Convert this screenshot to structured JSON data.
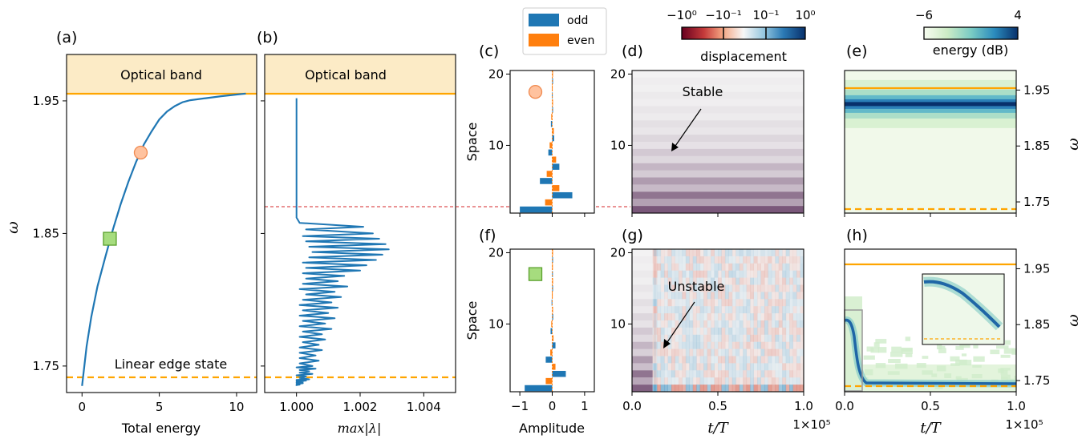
{
  "colors": {
    "blue": "#1f77b4",
    "orange": "#ff7f0e",
    "band_fill": "#fcebc6",
    "band_line": "#ffa500",
    "red_dash": "#d62728",
    "marker_circle_fill": "#ffc29e",
    "marker_circle_edge": "#f08a50",
    "marker_square_fill": "#a6dc7e",
    "marker_square_edge": "#5aa02c"
  },
  "panel_labels": {
    "a": "(a)",
    "b": "(b)",
    "c": "(c)",
    "d": "(d)",
    "e": "(e)",
    "f": "(f)",
    "g": "(g)",
    "h": "(h)"
  },
  "legend": {
    "odd": "odd",
    "even": "even"
  },
  "colorbar_displacement": {
    "label": "displacement",
    "ticks": [
      "−10⁰",
      "−10⁻¹",
      "10⁻¹",
      "10⁰"
    ]
  },
  "colorbar_energy": {
    "label": "energy (dB)",
    "ticks": [
      "−6",
      "4"
    ]
  },
  "chart_data": [
    {
      "panel": "a",
      "type": "line",
      "xlabel": "Total energy",
      "ylabel": "ω",
      "xlim": [
        -1,
        11.3
      ],
      "ylim": [
        1.73,
        1.985
      ],
      "xticks": [
        "0",
        "5",
        "10"
      ],
      "yticks": [
        "1.75",
        "1.85",
        "1.95"
      ],
      "band_text": "Optical band",
      "edge_text": "Linear edge state",
      "optical_band_edge": 1.95,
      "linear_edge_state": 1.735,
      "series": [
        {
          "x": [
            0,
            0.3,
            0.6,
            1.0,
            1.5,
            2.0,
            2.5,
            3.0,
            3.5,
            4.0,
            4.5,
            5.0,
            5.5,
            6.0,
            6.5,
            7.0,
            8.0,
            9.0,
            10.0,
            10.6
          ],
          "y": [
            1.735,
            1.765,
            1.787,
            1.81,
            1.832,
            1.853,
            1.872,
            1.889,
            1.904,
            1.917,
            1.927,
            1.936,
            1.942,
            1.946,
            1.949,
            1.9505,
            1.952,
            1.9535,
            1.9548,
            1.9555
          ]
        }
      ],
      "markers": [
        {
          "shape": "circle",
          "x": 3.8,
          "y": 1.911
        },
        {
          "shape": "square",
          "x": 1.8,
          "y": 1.846
        }
      ]
    },
    {
      "panel": "b",
      "type": "line",
      "xlabel": "max|λ|",
      "xlim": [
        0.999,
        1.005
      ],
      "ylim": [
        1.73,
        1.985
      ],
      "xticks": [
        "1.000",
        "1.002",
        "1.004"
      ],
      "band_text": "Optical band",
      "optical_band_edge": 1.95,
      "linear_edge_state": 1.735,
      "instability_threshold": 1.862,
      "series": [
        {
          "x": [
            1.0,
            1.0,
            1.0,
            1.0001,
            1.0021,
            1.0003,
            1.0024,
            1.0002,
            1.0026,
            1.0003,
            1.0028,
            1.0004,
            1.0029,
            1.0005,
            1.0027,
            1.0004,
            1.0025,
            1.0002,
            1.0022,
            1.0003,
            1.002,
            1.0002,
            1.0015,
            1.0003,
            1.0013,
            1.0002,
            1.0016,
            1.0001,
            1.0012,
            1.0003,
            1.0014,
            1.0002,
            1.0011,
            1.0001,
            1.0013,
            1.0002,
            1.001,
            1.0001,
            1.0012,
            1.0002,
            1.0009,
            1.0001,
            1.0011,
            1.0002,
            1.0008,
            1.0001,
            1.0009,
            1.0002,
            1.0007,
            1.0001,
            1.0008,
            1.0001,
            1.0006,
            1.0001,
            1.0007,
            1.0001,
            1.0005,
            1.0,
            1.0006,
            1.0001,
            1.0004,
            1.0001,
            1.0005,
            1.0,
            1.0003,
            1.0001,
            1.0004,
            1.0,
            1.0003,
            1.0,
            1.0002,
            1.0,
            1.0002,
            1.0,
            1.0001,
            1.0,
            1.0,
            1.0
          ],
          "y": [
            1.952,
            1.9,
            1.862,
            1.858,
            1.855,
            1.853,
            1.85,
            1.848,
            1.846,
            1.844,
            1.842,
            1.84,
            1.838,
            1.836,
            1.834,
            1.832,
            1.83,
            1.828,
            1.826,
            1.824,
            1.822,
            1.82,
            1.818,
            1.816,
            1.814,
            1.812,
            1.81,
            1.808,
            1.806,
            1.804,
            1.802,
            1.8,
            1.798,
            1.796,
            1.794,
            1.792,
            1.79,
            1.788,
            1.786,
            1.784,
            1.782,
            1.78,
            1.778,
            1.776,
            1.774,
            1.772,
            1.77,
            1.768,
            1.766,
            1.764,
            1.762,
            1.76,
            1.758,
            1.756,
            1.754,
            1.752,
            1.75,
            1.749,
            1.748,
            1.747,
            1.746,
            1.745,
            1.744,
            1.743,
            1.742,
            1.741,
            1.74,
            1.7395,
            1.739,
            1.7385,
            1.738,
            1.7375,
            1.737,
            1.7365,
            1.736,
            1.7357,
            1.7355,
            1.735
          ]
        }
      ]
    },
    {
      "panel": "c",
      "type": "bar",
      "ylabel": "Space",
      "xlim": [
        -1.3,
        1.3
      ],
      "ylim": [
        0.5,
        20.5
      ],
      "xticks": [
        "−1",
        "0",
        "1"
      ],
      "yticks": [
        "10",
        "20"
      ],
      "marker": {
        "shape": "circle",
        "x": -0.52,
        "y": 17.5
      },
      "sites": [
        1,
        2,
        3,
        4,
        5,
        6,
        7,
        8,
        9,
        10,
        11,
        12,
        13,
        14,
        15,
        16,
        17,
        18,
        19,
        20
      ],
      "series": [
        {
          "name": "odd",
          "values": [
            -1.0,
            0,
            0.62,
            0,
            -0.38,
            0,
            0.22,
            0,
            -0.12,
            0,
            0.06,
            0,
            -0.04,
            0,
            0.02,
            0,
            -0.01,
            0,
            0.005,
            0
          ]
        },
        {
          "name": "even",
          "values": [
            0,
            -0.22,
            0,
            0.22,
            0,
            -0.17,
            0,
            0.12,
            0,
            -0.08,
            0,
            0.05,
            0,
            -0.03,
            0,
            0.02,
            0,
            -0.01,
            0,
            0.005
          ]
        }
      ]
    },
    {
      "panel": "f",
      "type": "bar",
      "xlabel": "Amplitude",
      "ylabel": "Space",
      "xlim": [
        -1.3,
        1.3
      ],
      "ylim": [
        0.5,
        20.5
      ],
      "xticks": [
        "−1",
        "0",
        "1"
      ],
      "yticks": [
        "10",
        "20"
      ],
      "marker": {
        "shape": "square",
        "x": -0.52,
        "y": 17
      },
      "sites": [
        1,
        2,
        3,
        4,
        5,
        6,
        7,
        8,
        9,
        10,
        11,
        12,
        13,
        14,
        15,
        16,
        17,
        18,
        19,
        20
      ],
      "series": [
        {
          "name": "odd",
          "values": [
            -0.85,
            0,
            0.42,
            0,
            -0.2,
            0,
            0.1,
            0,
            -0.05,
            0,
            0.03,
            0,
            -0.02,
            0,
            0.01,
            0,
            -0.005,
            0,
            0.003,
            0
          ]
        },
        {
          "name": "even",
          "values": [
            0,
            -0.2,
            0,
            0.1,
            0,
            -0.06,
            0,
            0.04,
            0,
            -0.03,
            0,
            0.02,
            0,
            -0.01,
            0,
            0.008,
            0,
            -0.005,
            0,
            0.003
          ]
        }
      ]
    },
    {
      "panel": "d",
      "type": "heatmap",
      "ylim": [
        0.5,
        20.5
      ],
      "xlim": [
        0,
        1
      ],
      "yticks": [
        "10",
        "20"
      ],
      "annotation": "Stable",
      "state": "stable"
    },
    {
      "panel": "g",
      "type": "heatmap",
      "xlabel": "t/T",
      "xlim": [
        0,
        1
      ],
      "ylim": [
        0.5,
        20.5
      ],
      "xticks": [
        "0.0",
        "0.5",
        "1.0"
      ],
      "yticks": [
        "10",
        "20"
      ],
      "x_multiplier": "1×10⁵",
      "annotation": "Unstable",
      "state": "unstable"
    },
    {
      "panel": "e",
      "type": "heatmap",
      "ylabel": "ω",
      "xlim": [
        0,
        1
      ],
      "ylim": [
        1.73,
        1.985
      ],
      "yticks": [
        "1.75",
        "1.85",
        "1.95"
      ],
      "optical_band_edge": 1.95,
      "linear_edge_state": 1.735,
      "peak_frequency": 1.925,
      "state": "stable"
    },
    {
      "panel": "h",
      "type": "heatmap",
      "xlabel": "t/T",
      "ylabel": "ω",
      "xlim": [
        0,
        1
      ],
      "ylim": [
        1.73,
        1.985
      ],
      "xticks": [
        "0.0",
        "0.5",
        "1.0"
      ],
      "yticks": [
        "1.75",
        "1.85",
        "1.95"
      ],
      "x_multiplier": "1×10⁵",
      "optical_band_edge": 1.95,
      "linear_edge_state": 1.735,
      "state": "unstable"
    }
  ]
}
